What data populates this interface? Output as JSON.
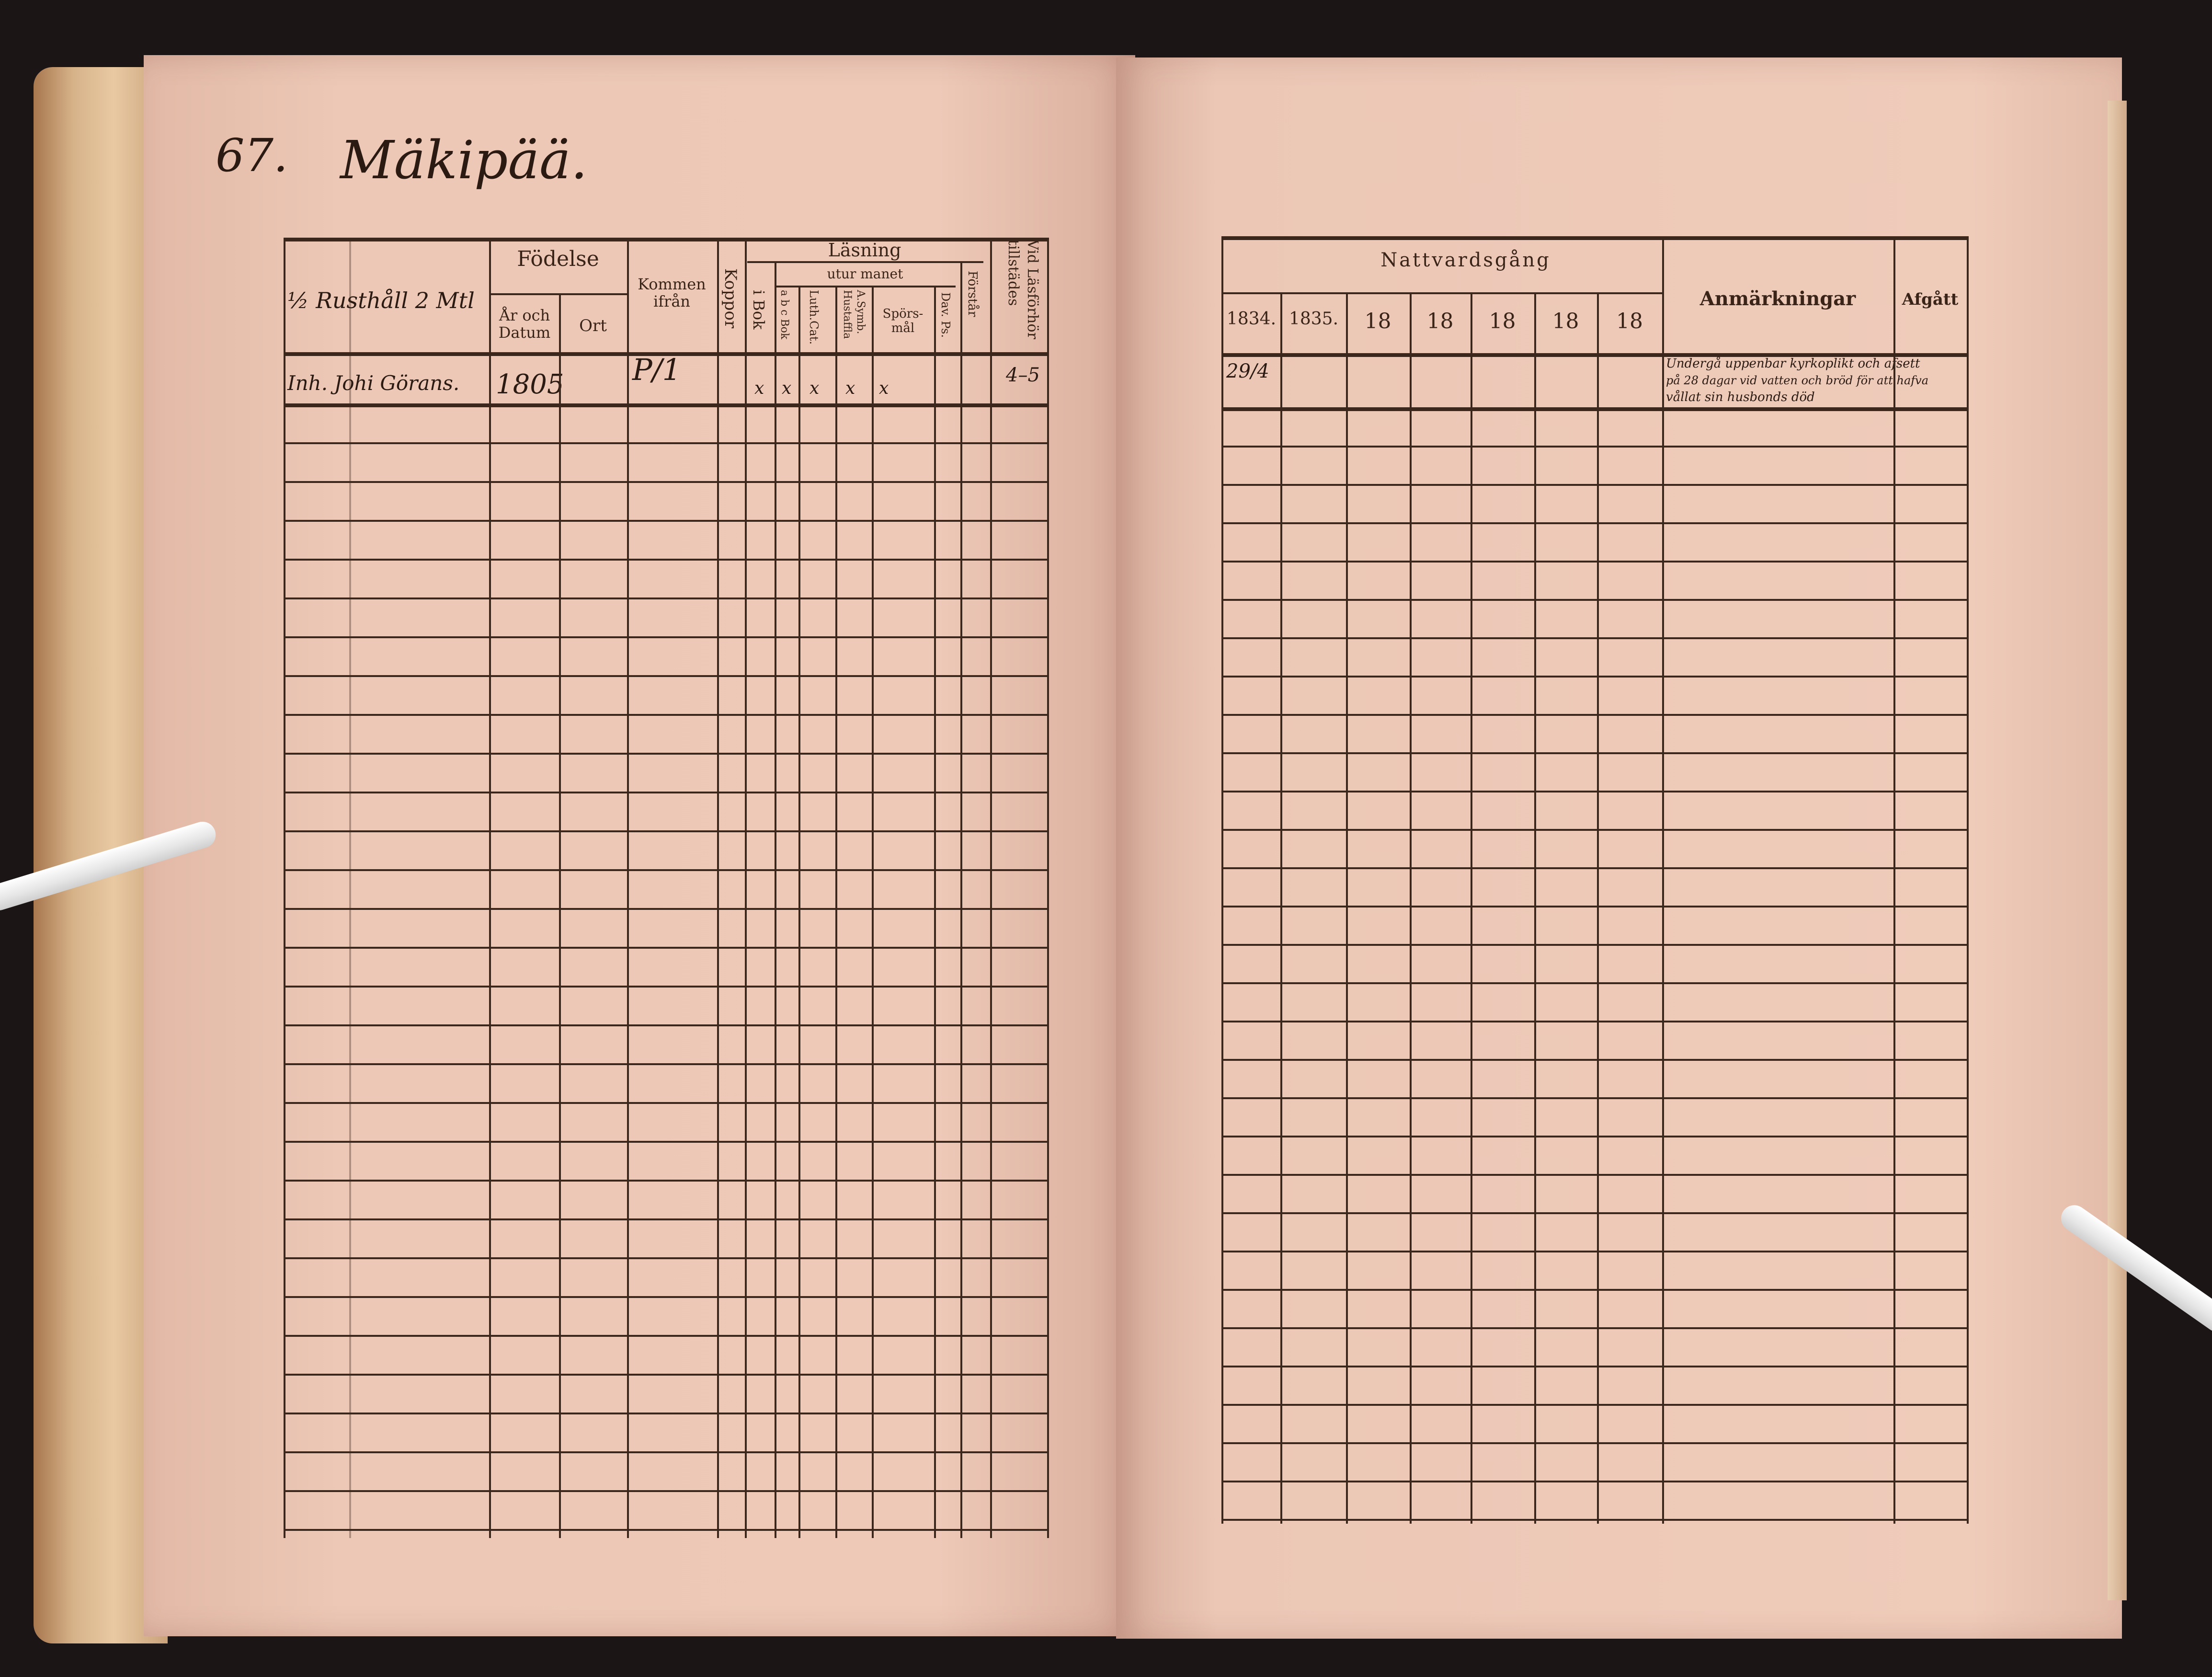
{
  "left_page": {
    "heading": {
      "number": "67.",
      "name": "Mäkipää."
    },
    "household_label": "½ Rusthåll 2 Mtl",
    "columns": {
      "fodelse": "Födelse",
      "ar_och_datum": "År och Datum",
      "ort": "Ort",
      "kommen_ifran": "Kommen ifrån",
      "koppor": "Koppor",
      "lasning": "Läsning",
      "utur_manet": "utur manet",
      "i_bok": "i Bok",
      "abc_bok": "a b c Bok",
      "luth_cat": "Luth.Cat.",
      "asymb_hustaffla": "A.Symb. Hustaffla",
      "sporsmal": "Spörs-mål",
      "dav_ps": "Dav. Ps.",
      "forstar": "Förstår",
      "vid_lasforhor": "Vid Läsförhör tillstädes"
    },
    "entries": [
      {
        "name": "Inh. Johi Görans.",
        "born": "1805",
        "from": "P/1",
        "marks": [
          "x",
          "x",
          "x",
          "x",
          "x"
        ],
        "attendance": "4–5"
      }
    ]
  },
  "right_page": {
    "columns": {
      "nattvardsgang": "Nattvardsgång",
      "years": [
        "1834.",
        "1835.",
        "18",
        "18",
        "18",
        "18",
        "18"
      ],
      "anmarkningar": "Anmärkningar",
      "afgatt": "Afgått"
    },
    "entries": [
      {
        "communion": "29/4",
        "remark_lines": [
          "Undergå uppenbar kyrkoplikt och afsett",
          "på 28 dagar vid vatten och bröd för att hafva",
          "vållat sin husbonds död"
        ]
      }
    ]
  },
  "colors": {
    "paper": "#eec9b8",
    "ink": "#3b271c",
    "background": "#1c1516"
  }
}
